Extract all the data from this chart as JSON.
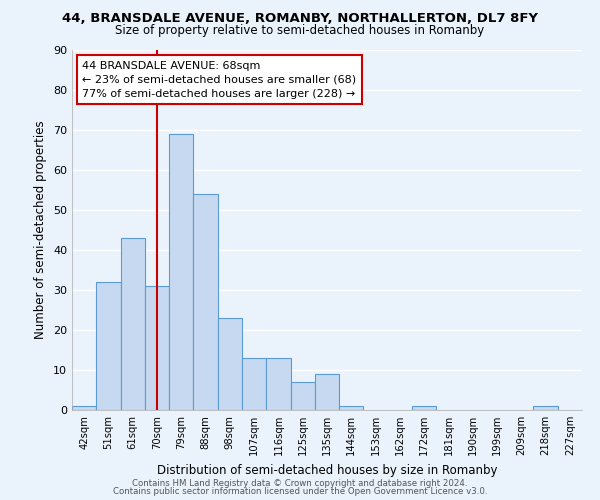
{
  "title": "44, BRANSDALE AVENUE, ROMANBY, NORTHALLERTON, DL7 8FY",
  "subtitle": "Size of property relative to semi-detached houses in Romanby",
  "xlabel": "Distribution of semi-detached houses by size in Romanby",
  "ylabel": "Number of semi-detached properties",
  "bar_labels": [
    "42sqm",
    "51sqm",
    "61sqm",
    "70sqm",
    "79sqm",
    "88sqm",
    "98sqm",
    "107sqm",
    "116sqm",
    "125sqm",
    "135sqm",
    "144sqm",
    "153sqm",
    "162sqm",
    "172sqm",
    "181sqm",
    "190sqm",
    "199sqm",
    "209sqm",
    "218sqm",
    "227sqm"
  ],
  "bar_heights": [
    1,
    32,
    43,
    31,
    69,
    54,
    23,
    13,
    13,
    7,
    9,
    1,
    0,
    0,
    1,
    0,
    0,
    0,
    0,
    1,
    0
  ],
  "bar_color": "#c6d9f0",
  "bar_edge_color": "#5b9bd5",
  "vline_x": 3.0,
  "vline_color": "#cc0000",
  "ylim": [
    0,
    90
  ],
  "yticks": [
    0,
    10,
    20,
    30,
    40,
    50,
    60,
    70,
    80,
    90
  ],
  "annotation_title": "44 BRANSDALE AVENUE: 68sqm",
  "annotation_line1": "← 23% of semi-detached houses are smaller (68)",
  "annotation_line2": "77% of semi-detached houses are larger (228) →",
  "footer_line1": "Contains HM Land Registry data © Crown copyright and database right 2024.",
  "footer_line2": "Contains public sector information licensed under the Open Government Licence v3.0.",
  "bg_color": "#eaf3fb",
  "plot_bg_color": "#eaf3fb",
  "grid_color": "#ffffff"
}
